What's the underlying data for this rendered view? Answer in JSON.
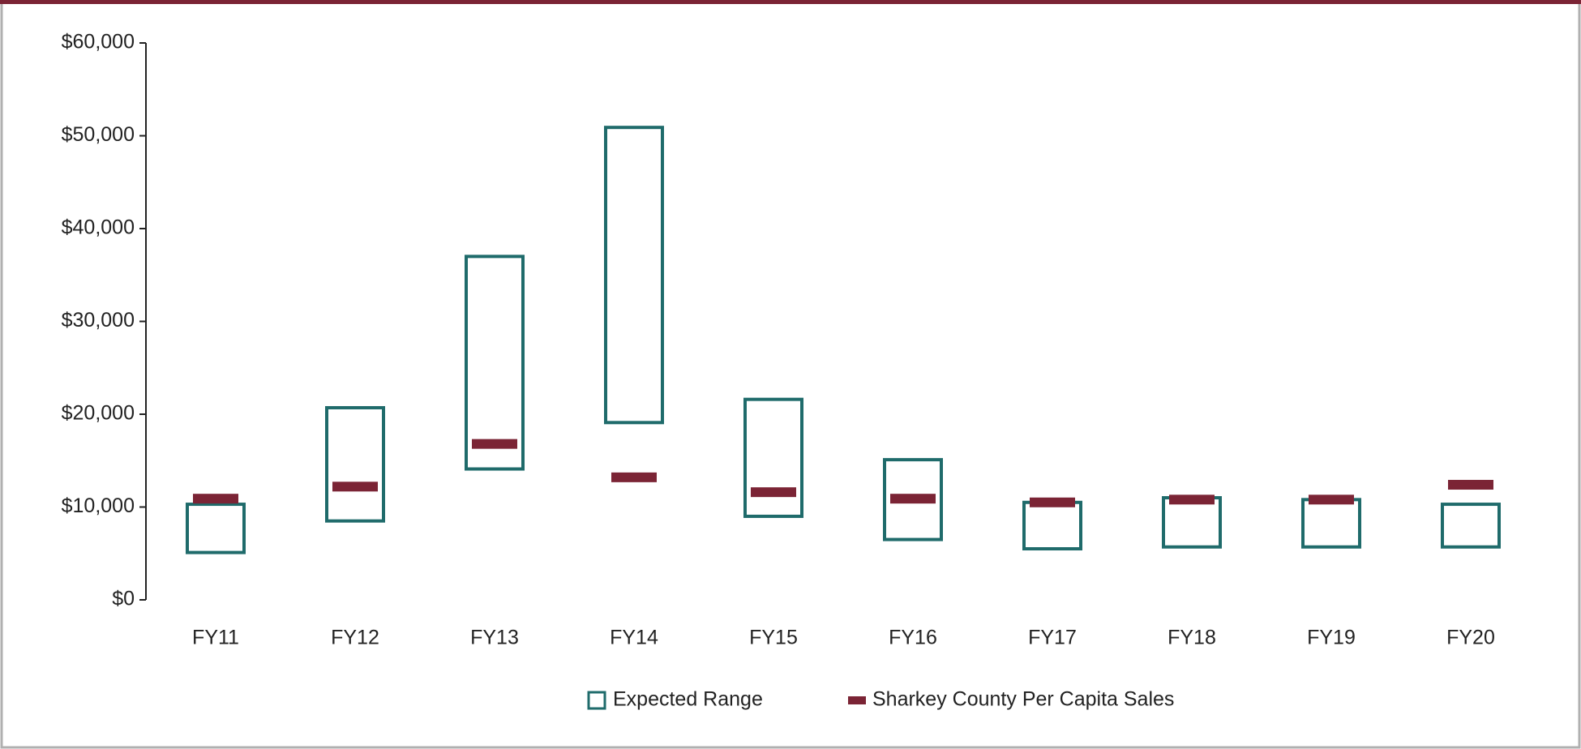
{
  "chart_data": {
    "type": "range",
    "categories": [
      "FY11",
      "FY12",
      "FY13",
      "FY14",
      "FY15",
      "FY16",
      "FY17",
      "FY18",
      "FY19",
      "FY20"
    ],
    "series": [
      {
        "name": "Expected Range",
        "color": "#1f6b6b",
        "low": [
          5100,
          8500,
          14100,
          19100,
          9000,
          6500,
          5500,
          5700,
          5700,
          5700
        ],
        "high": [
          10300,
          20700,
          37000,
          50900,
          21600,
          15100,
          10500,
          11000,
          10800,
          10300
        ]
      },
      {
        "name": "Sharkey County Per Capita Sales",
        "color": "#7b2435",
        "values": [
          10900,
          12200,
          16800,
          13200,
          11600,
          10900,
          10500,
          10800,
          10800,
          12400
        ]
      }
    ],
    "ylim": [
      0,
      60000
    ],
    "yticks": [
      {
        "value": 0,
        "label": "$0"
      },
      {
        "value": 10000,
        "label": "$10,000"
      },
      {
        "value": 20000,
        "label": "$20,000"
      },
      {
        "value": 30000,
        "label": "$30,000"
      },
      {
        "value": 40000,
        "label": "$40,000"
      },
      {
        "value": 50000,
        "label": "$50,000"
      },
      {
        "value": 60000,
        "label": "$60,000"
      }
    ],
    "legend": "bottom"
  }
}
